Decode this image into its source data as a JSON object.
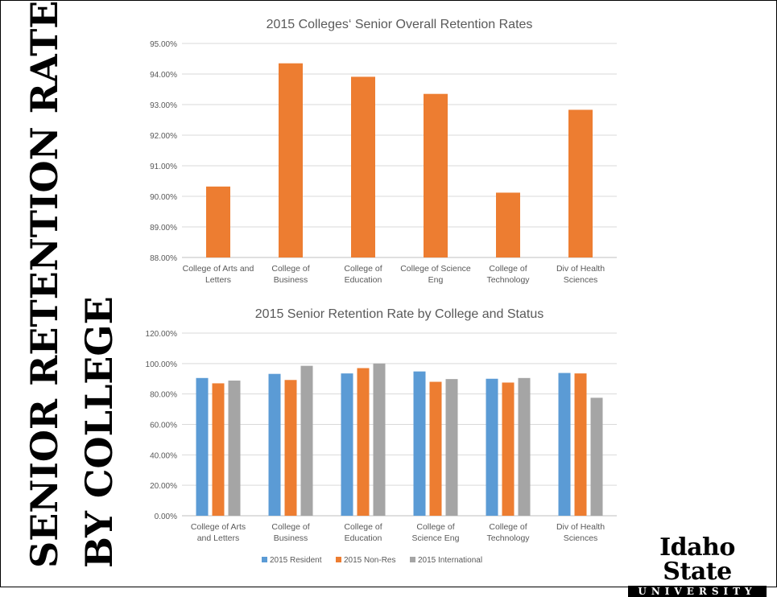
{
  "slide": {
    "title_line1": "SENIOR RETENTION RATE",
    "title_line2": "BY COLLEGE",
    "logo_top": "Idaho State",
    "logo_bottom": "UNIVERSITY"
  },
  "colors": {
    "orange": "#ED7D31",
    "blue": "#5B9BD5",
    "gray": "#A5A5A5",
    "grid": "#D9D9D9",
    "text": "#595959"
  },
  "chart_data": [
    {
      "type": "bar",
      "title": "2015 Colleges‘ Senior Overall Retention Rates",
      "categories": [
        [
          "College of Arts and",
          "Letters"
        ],
        [
          "College of",
          "Business"
        ],
        [
          "College of",
          "Education"
        ],
        [
          "College of Science",
          "Eng"
        ],
        [
          "College of",
          "Technology"
        ],
        [
          "Div of Health",
          "Sciences"
        ]
      ],
      "series": [
        {
          "values": [
            90.32,
            94.35,
            93.91,
            93.35,
            90.12,
            92.83
          ]
        }
      ],
      "ylim": [
        88,
        95
      ],
      "yticks": [
        "88.00%",
        "89.00%",
        "90.00%",
        "91.00%",
        "92.00%",
        "93.00%",
        "94.00%",
        "95.00%"
      ],
      "grid": true,
      "legend": "none"
    },
    {
      "type": "bar",
      "title": "2015 Senior Retention Rate by College and Status",
      "categories": [
        [
          "College of Arts",
          "and Letters"
        ],
        [
          "College of",
          "Business"
        ],
        [
          "College of",
          "Education"
        ],
        [
          "College of",
          "Science Eng"
        ],
        [
          "College of",
          "Technology"
        ],
        [
          "Div of Health",
          "Sciences"
        ]
      ],
      "series": [
        {
          "name": "2015 Resident",
          "values": [
            90.5,
            93.2,
            93.5,
            94.8,
            90.0,
            93.8
          ]
        },
        {
          "name": "2015 Non-Res",
          "values": [
            87.0,
            89.2,
            97.0,
            88.0,
            87.5,
            93.5
          ]
        },
        {
          "name": "2015 International",
          "values": [
            88.8,
            98.5,
            100.0,
            89.8,
            90.5,
            77.5
          ]
        }
      ],
      "ylim": [
        0,
        120
      ],
      "yticks": [
        "0.00%",
        "20.00%",
        "40.00%",
        "60.00%",
        "80.00%",
        "100.00%",
        "120.00%"
      ],
      "grid": true,
      "legend": "bottom"
    }
  ]
}
